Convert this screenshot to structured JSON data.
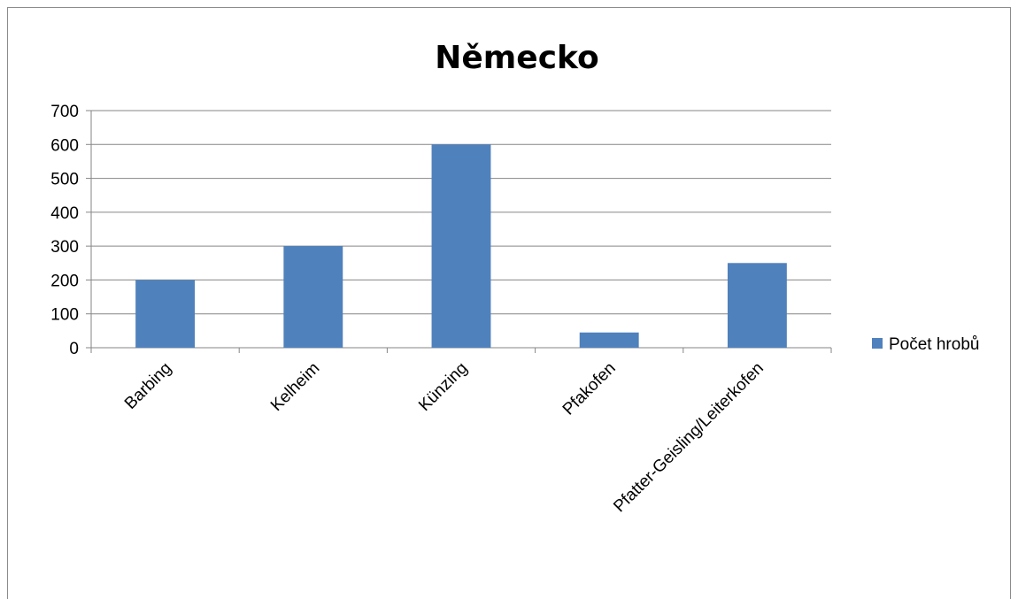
{
  "chart_data": {
    "type": "bar",
    "title": "Německo",
    "categories": [
      "Barbing",
      "Kelheim",
      "Künzing",
      "Pfakofen",
      "Pfatter-Geisling/Leiterkofen"
    ],
    "series": [
      {
        "name": "Počet hrobů",
        "values": [
          200,
          300,
          600,
          45,
          250
        ],
        "color": "#4f81bd"
      }
    ],
    "xlabel": "",
    "ylabel": "",
    "ylim": [
      0,
      700
    ],
    "yticks": [
      0,
      100,
      200,
      300,
      400,
      500,
      600,
      700
    ],
    "grid": true,
    "legend_position": "right"
  }
}
